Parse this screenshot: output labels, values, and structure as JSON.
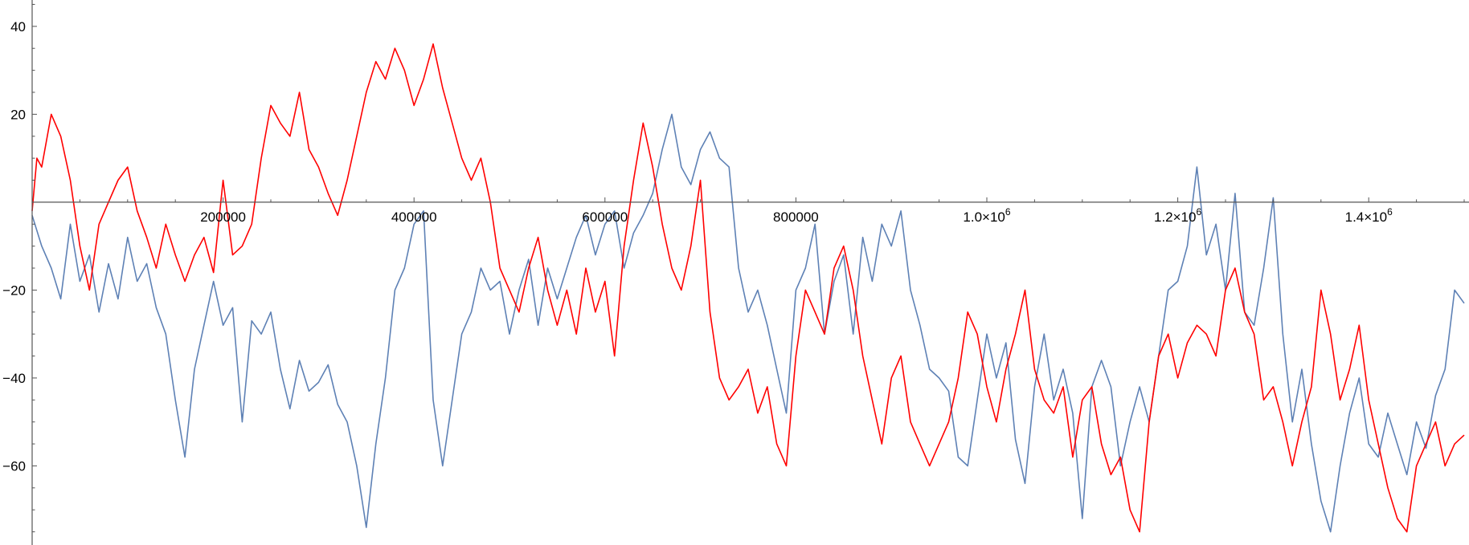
{
  "chart_data": {
    "type": "line",
    "title": "",
    "xlabel": "",
    "ylabel": "",
    "xlim": [
      0,
      1500000
    ],
    "ylim": [
      -78,
      46
    ],
    "grid": false,
    "legend": "none",
    "x_ticks": [
      {
        "value": 200000,
        "label": "200000"
      },
      {
        "value": 400000,
        "label": "400000"
      },
      {
        "value": 600000,
        "label": "600000"
      },
      {
        "value": 800000,
        "label": "800000"
      },
      {
        "value": 1000000,
        "label": "1.0×10",
        "exp": "6"
      },
      {
        "value": 1200000,
        "label": "1.2×10",
        "exp": "6"
      },
      {
        "value": 1400000,
        "label": "1.4×10",
        "exp": "6"
      }
    ],
    "y_ticks": [
      {
        "value": 40,
        "label": "40"
      },
      {
        "value": 20,
        "label": "20"
      },
      {
        "value": -20,
        "label": "−20"
      },
      {
        "value": -40,
        "label": "−40"
      },
      {
        "value": -60,
        "label": "−60"
      }
    ],
    "series": [
      {
        "color": "#5E81B5",
        "points": [
          [
            0,
            -3
          ],
          [
            10000,
            -10
          ],
          [
            20000,
            -15
          ],
          [
            30000,
            -22
          ],
          [
            40000,
            -5
          ],
          [
            50000,
            -18
          ],
          [
            60000,
            -12
          ],
          [
            70000,
            -25
          ],
          [
            80000,
            -14
          ],
          [
            90000,
            -22
          ],
          [
            100000,
            -8
          ],
          [
            110000,
            -18
          ],
          [
            120000,
            -14
          ],
          [
            130000,
            -24
          ],
          [
            140000,
            -30
          ],
          [
            150000,
            -45
          ],
          [
            160000,
            -58
          ],
          [
            170000,
            -38
          ],
          [
            180000,
            -28
          ],
          [
            190000,
            -18
          ],
          [
            200000,
            -28
          ],
          [
            210000,
            -24
          ],
          [
            220000,
            -50
          ],
          [
            230000,
            -27
          ],
          [
            240000,
            -30
          ],
          [
            250000,
            -25
          ],
          [
            260000,
            -38
          ],
          [
            270000,
            -47
          ],
          [
            280000,
            -36
          ],
          [
            290000,
            -43
          ],
          [
            300000,
            -41
          ],
          [
            310000,
            -37
          ],
          [
            320000,
            -46
          ],
          [
            330000,
            -50
          ],
          [
            340000,
            -60
          ],
          [
            350000,
            -74
          ],
          [
            360000,
            -55
          ],
          [
            370000,
            -40
          ],
          [
            380000,
            -20
          ],
          [
            390000,
            -15
          ],
          [
            400000,
            -5
          ],
          [
            410000,
            -2
          ],
          [
            420000,
            -45
          ],
          [
            430000,
            -60
          ],
          [
            440000,
            -45
          ],
          [
            450000,
            -30
          ],
          [
            460000,
            -25
          ],
          [
            470000,
            -15
          ],
          [
            480000,
            -20
          ],
          [
            490000,
            -18
          ],
          [
            500000,
            -30
          ],
          [
            510000,
            -20
          ],
          [
            520000,
            -13
          ],
          [
            530000,
            -28
          ],
          [
            540000,
            -15
          ],
          [
            550000,
            -22
          ],
          [
            560000,
            -15
          ],
          [
            570000,
            -8
          ],
          [
            580000,
            -3
          ],
          [
            590000,
            -12
          ],
          [
            600000,
            -5
          ],
          [
            610000,
            -2
          ],
          [
            620000,
            -15
          ],
          [
            630000,
            -7
          ],
          [
            640000,
            -3
          ],
          [
            650000,
            2
          ],
          [
            660000,
            12
          ],
          [
            670000,
            20
          ],
          [
            680000,
            8
          ],
          [
            690000,
            4
          ],
          [
            700000,
            12
          ],
          [
            710000,
            16
          ],
          [
            720000,
            10
          ],
          [
            730000,
            8
          ],
          [
            740000,
            -15
          ],
          [
            750000,
            -25
          ],
          [
            760000,
            -20
          ],
          [
            770000,
            -28
          ],
          [
            780000,
            -38
          ],
          [
            790000,
            -48
          ],
          [
            800000,
            -20
          ],
          [
            810000,
            -15
          ],
          [
            820000,
            -5
          ],
          [
            830000,
            -30
          ],
          [
            840000,
            -18
          ],
          [
            850000,
            -12
          ],
          [
            860000,
            -30
          ],
          [
            870000,
            -8
          ],
          [
            880000,
            -18
          ],
          [
            890000,
            -5
          ],
          [
            900000,
            -10
          ],
          [
            910000,
            -2
          ],
          [
            920000,
            -20
          ],
          [
            930000,
            -28
          ],
          [
            940000,
            -38
          ],
          [
            950000,
            -40
          ],
          [
            960000,
            -43
          ],
          [
            970000,
            -58
          ],
          [
            980000,
            -60
          ],
          [
            990000,
            -45
          ],
          [
            1000000,
            -30
          ],
          [
            1010000,
            -40
          ],
          [
            1020000,
            -32
          ],
          [
            1030000,
            -54
          ],
          [
            1040000,
            -64
          ],
          [
            1050000,
            -42
          ],
          [
            1060000,
            -30
          ],
          [
            1070000,
            -45
          ],
          [
            1080000,
            -38
          ],
          [
            1090000,
            -48
          ],
          [
            1100000,
            -72
          ],
          [
            1110000,
            -42
          ],
          [
            1120000,
            -36
          ],
          [
            1130000,
            -42
          ],
          [
            1140000,
            -60
          ],
          [
            1150000,
            -50
          ],
          [
            1160000,
            -42
          ],
          [
            1170000,
            -50
          ],
          [
            1180000,
            -35
          ],
          [
            1190000,
            -20
          ],
          [
            1200000,
            -18
          ],
          [
            1210000,
            -10
          ],
          [
            1220000,
            8
          ],
          [
            1230000,
            -12
          ],
          [
            1240000,
            -5
          ],
          [
            1250000,
            -20
          ],
          [
            1260000,
            2
          ],
          [
            1270000,
            -25
          ],
          [
            1280000,
            -28
          ],
          [
            1290000,
            -15
          ],
          [
            1300000,
            1
          ],
          [
            1310000,
            -30
          ],
          [
            1320000,
            -50
          ],
          [
            1330000,
            -38
          ],
          [
            1340000,
            -55
          ],
          [
            1350000,
            -68
          ],
          [
            1360000,
            -75
          ],
          [
            1370000,
            -60
          ],
          [
            1380000,
            -48
          ],
          [
            1390000,
            -40
          ],
          [
            1400000,
            -55
          ],
          [
            1410000,
            -58
          ],
          [
            1420000,
            -48
          ],
          [
            1430000,
            -55
          ],
          [
            1440000,
            -62
          ],
          [
            1450000,
            -50
          ],
          [
            1460000,
            -56
          ],
          [
            1470000,
            -44
          ],
          [
            1480000,
            -38
          ],
          [
            1490000,
            -20
          ],
          [
            1500000,
            -23
          ]
        ]
      },
      {
        "color": "#FF0000",
        "points": [
          [
            0,
            -2
          ],
          [
            5000,
            10
          ],
          [
            10000,
            8
          ],
          [
            20000,
            20
          ],
          [
            30000,
            15
          ],
          [
            40000,
            5
          ],
          [
            50000,
            -10
          ],
          [
            60000,
            -20
          ],
          [
            70000,
            -5
          ],
          [
            80000,
            0
          ],
          [
            90000,
            5
          ],
          [
            100000,
            8
          ],
          [
            110000,
            -2
          ],
          [
            120000,
            -8
          ],
          [
            130000,
            -15
          ],
          [
            140000,
            -5
          ],
          [
            150000,
            -12
          ],
          [
            160000,
            -18
          ],
          [
            170000,
            -12
          ],
          [
            180000,
            -8
          ],
          [
            190000,
            -16
          ],
          [
            200000,
            5
          ],
          [
            210000,
            -12
          ],
          [
            220000,
            -10
          ],
          [
            230000,
            -5
          ],
          [
            240000,
            10
          ],
          [
            250000,
            22
          ],
          [
            260000,
            18
          ],
          [
            270000,
            15
          ],
          [
            280000,
            25
          ],
          [
            290000,
            12
          ],
          [
            300000,
            8
          ],
          [
            310000,
            2
          ],
          [
            320000,
            -3
          ],
          [
            330000,
            5
          ],
          [
            340000,
            15
          ],
          [
            350000,
            25
          ],
          [
            360000,
            32
          ],
          [
            370000,
            28
          ],
          [
            380000,
            35
          ],
          [
            390000,
            30
          ],
          [
            400000,
            22
          ],
          [
            410000,
            28
          ],
          [
            420000,
            36
          ],
          [
            430000,
            26
          ],
          [
            440000,
            18
          ],
          [
            450000,
            10
          ],
          [
            460000,
            5
          ],
          [
            470000,
            10
          ],
          [
            480000,
            0
          ],
          [
            490000,
            -15
          ],
          [
            500000,
            -20
          ],
          [
            510000,
            -25
          ],
          [
            520000,
            -15
          ],
          [
            530000,
            -8
          ],
          [
            540000,
            -20
          ],
          [
            550000,
            -28
          ],
          [
            560000,
            -20
          ],
          [
            570000,
            -30
          ],
          [
            580000,
            -15
          ],
          [
            590000,
            -25
          ],
          [
            600000,
            -18
          ],
          [
            610000,
            -35
          ],
          [
            620000,
            -10
          ],
          [
            630000,
            5
          ],
          [
            640000,
            18
          ],
          [
            650000,
            8
          ],
          [
            660000,
            -5
          ],
          [
            670000,
            -15
          ],
          [
            680000,
            -20
          ],
          [
            690000,
            -10
          ],
          [
            700000,
            5
          ],
          [
            710000,
            -25
          ],
          [
            720000,
            -40
          ],
          [
            730000,
            -45
          ],
          [
            740000,
            -42
          ],
          [
            750000,
            -38
          ],
          [
            760000,
            -48
          ],
          [
            770000,
            -42
          ],
          [
            780000,
            -55
          ],
          [
            790000,
            -60
          ],
          [
            800000,
            -35
          ],
          [
            810000,
            -20
          ],
          [
            820000,
            -25
          ],
          [
            830000,
            -30
          ],
          [
            840000,
            -15
          ],
          [
            850000,
            -10
          ],
          [
            860000,
            -20
          ],
          [
            870000,
            -35
          ],
          [
            880000,
            -45
          ],
          [
            890000,
            -55
          ],
          [
            900000,
            -40
          ],
          [
            910000,
            -35
          ],
          [
            920000,
            -50
          ],
          [
            930000,
            -55
          ],
          [
            940000,
            -60
          ],
          [
            950000,
            -55
          ],
          [
            960000,
            -50
          ],
          [
            970000,
            -40
          ],
          [
            980000,
            -25
          ],
          [
            990000,
            -30
          ],
          [
            1000000,
            -42
          ],
          [
            1010000,
            -50
          ],
          [
            1020000,
            -38
          ],
          [
            1030000,
            -30
          ],
          [
            1040000,
            -20
          ],
          [
            1050000,
            -38
          ],
          [
            1060000,
            -45
          ],
          [
            1070000,
            -48
          ],
          [
            1080000,
            -42
          ],
          [
            1090000,
            -58
          ],
          [
            1100000,
            -45
          ],
          [
            1110000,
            -42
          ],
          [
            1120000,
            -55
          ],
          [
            1130000,
            -62
          ],
          [
            1140000,
            -58
          ],
          [
            1150000,
            -70
          ],
          [
            1160000,
            -75
          ],
          [
            1170000,
            -50
          ],
          [
            1180000,
            -35
          ],
          [
            1190000,
            -30
          ],
          [
            1200000,
            -40
          ],
          [
            1210000,
            -32
          ],
          [
            1220000,
            -28
          ],
          [
            1230000,
            -30
          ],
          [
            1240000,
            -35
          ],
          [
            1250000,
            -20
          ],
          [
            1260000,
            -15
          ],
          [
            1270000,
            -25
          ],
          [
            1280000,
            -30
          ],
          [
            1290000,
            -45
          ],
          [
            1300000,
            -42
          ],
          [
            1310000,
            -50
          ],
          [
            1320000,
            -60
          ],
          [
            1330000,
            -50
          ],
          [
            1340000,
            -42
          ],
          [
            1350000,
            -20
          ],
          [
            1360000,
            -30
          ],
          [
            1370000,
            -45
          ],
          [
            1380000,
            -38
          ],
          [
            1390000,
            -28
          ],
          [
            1400000,
            -45
          ],
          [
            1410000,
            -55
          ],
          [
            1420000,
            -65
          ],
          [
            1430000,
            -72
          ],
          [
            1440000,
            -75
          ],
          [
            1450000,
            -60
          ],
          [
            1460000,
            -55
          ],
          [
            1470000,
            -50
          ],
          [
            1480000,
            -60
          ],
          [
            1490000,
            -55
          ],
          [
            1500000,
            -53
          ]
        ]
      }
    ]
  }
}
